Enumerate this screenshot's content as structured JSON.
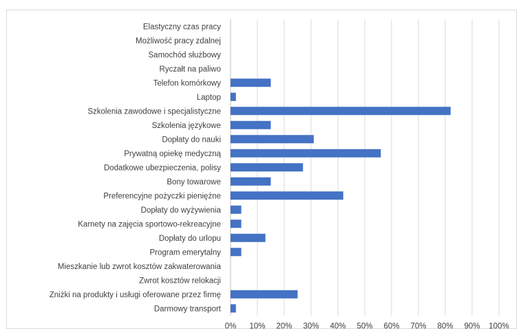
{
  "chart_data": {
    "type": "bar",
    "orientation": "horizontal",
    "categories": [
      "Elastyczny czas pracy",
      "Możliwość pracy zdalnej",
      "Samochód służbowy",
      "Ryczałt na paliwo",
      "Telefon komórkowy",
      "Laptop",
      "Szkolenia zawodowe i specjalistyczne",
      "Szkolenia językowe",
      "Dopłaty do nauki",
      "Prywatną opiekę medyczną",
      "Dodatkowe ubezpieczenia, polisy",
      "Bony towarowe",
      "Preferencyjne pożyczki pieniężne",
      "Dopłaty do wyżywienia",
      "Karnety na zajęcia sportowo-rekreacyjne",
      "Dopłaty do urlopu",
      "Program emerytalny",
      "Mieszkanie lub zwrot kosztów zakwaterowania",
      "Zwrot kosztów relokacji",
      "Zniżki na produkty i usługi oferowane przez firmę",
      "Darmowy transport"
    ],
    "values": [
      0,
      0,
      0,
      0,
      15,
      2,
      82,
      15,
      31,
      56,
      27,
      15,
      42,
      4,
      4,
      13,
      4,
      0,
      0,
      25,
      2
    ],
    "xlim": [
      0,
      100
    ],
    "xticks": [
      "0%",
      "10%",
      "20%",
      "30%",
      "40%",
      "50%",
      "60%",
      "70%",
      "80%",
      "90%",
      "100%"
    ],
    "grid": true,
    "legend": "none",
    "colors": {
      "bar": "#4472c4",
      "grid": "#d9d9d9"
    }
  }
}
